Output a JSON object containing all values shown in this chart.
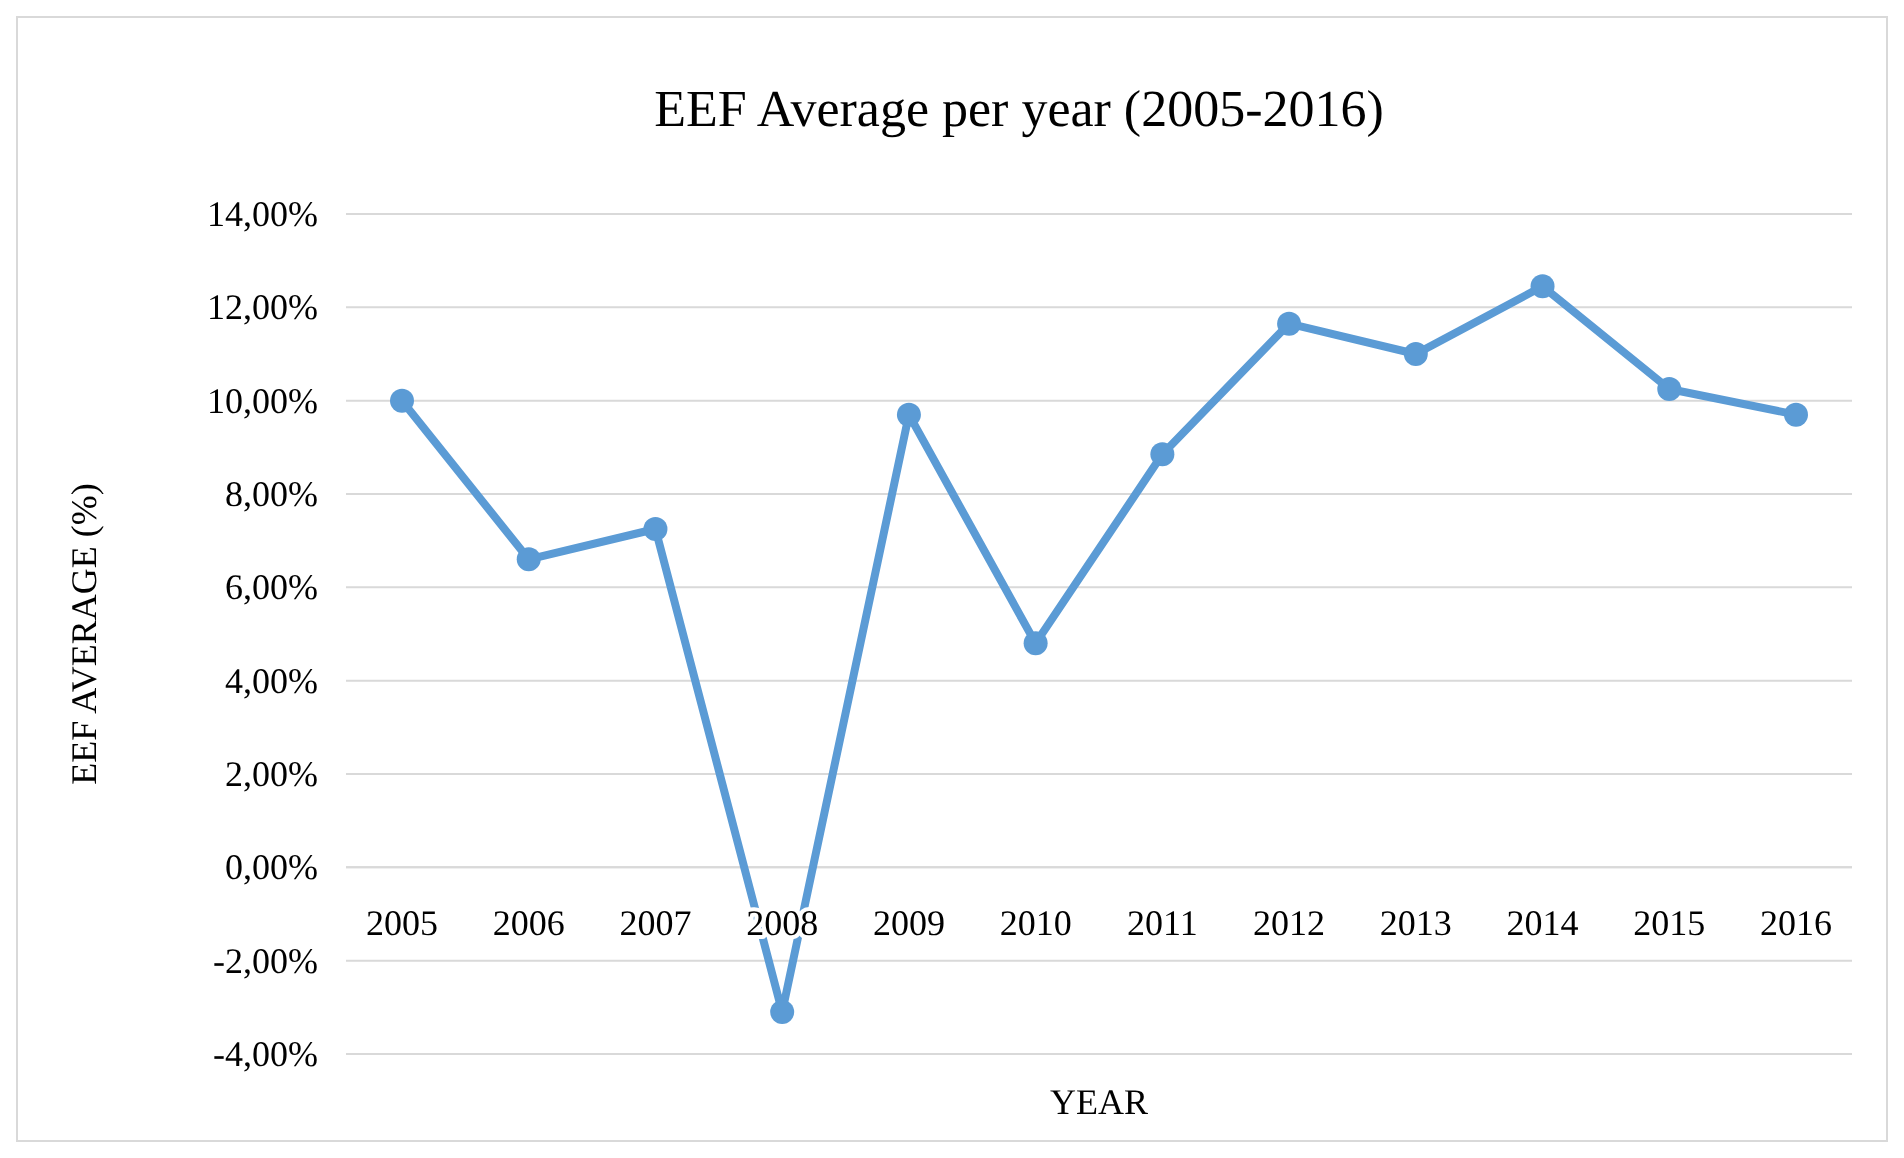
{
  "chart_data": {
    "type": "line",
    "title": "EEF Average per year (2005-2016)",
    "xlabel": "YEAR",
    "ylabel": "EEF AVERAGE (%)",
    "categories": [
      "2005",
      "2006",
      "2007",
      "2008",
      "2009",
      "2010",
      "2011",
      "2012",
      "2013",
      "2014",
      "2015",
      "2016"
    ],
    "series": [
      {
        "color": "#5b9bd5",
        "values": [
          10.0,
          6.6,
          7.25,
          -3.1,
          9.7,
          4.8,
          8.85,
          11.65,
          11.0,
          12.45,
          10.25,
          9.7
        ]
      }
    ],
    "ylim": [
      -4,
      14
    ],
    "yticks": [
      {
        "value": -4,
        "label": "-4,00%"
      },
      {
        "value": -2,
        "label": "-2,00%"
      },
      {
        "value": 0,
        "label": "0,00%"
      },
      {
        "value": 2,
        "label": "2,00%"
      },
      {
        "value": 4,
        "label": "4,00%"
      },
      {
        "value": 6,
        "label": "6,00%"
      },
      {
        "value": 8,
        "label": "8,00%"
      },
      {
        "value": 10,
        "label": "10,00%"
      },
      {
        "value": 12,
        "label": "12,00%"
      },
      {
        "value": 14,
        "label": "14,00%"
      }
    ],
    "grid": "y",
    "marker": "circle",
    "line_style": "solid"
  }
}
